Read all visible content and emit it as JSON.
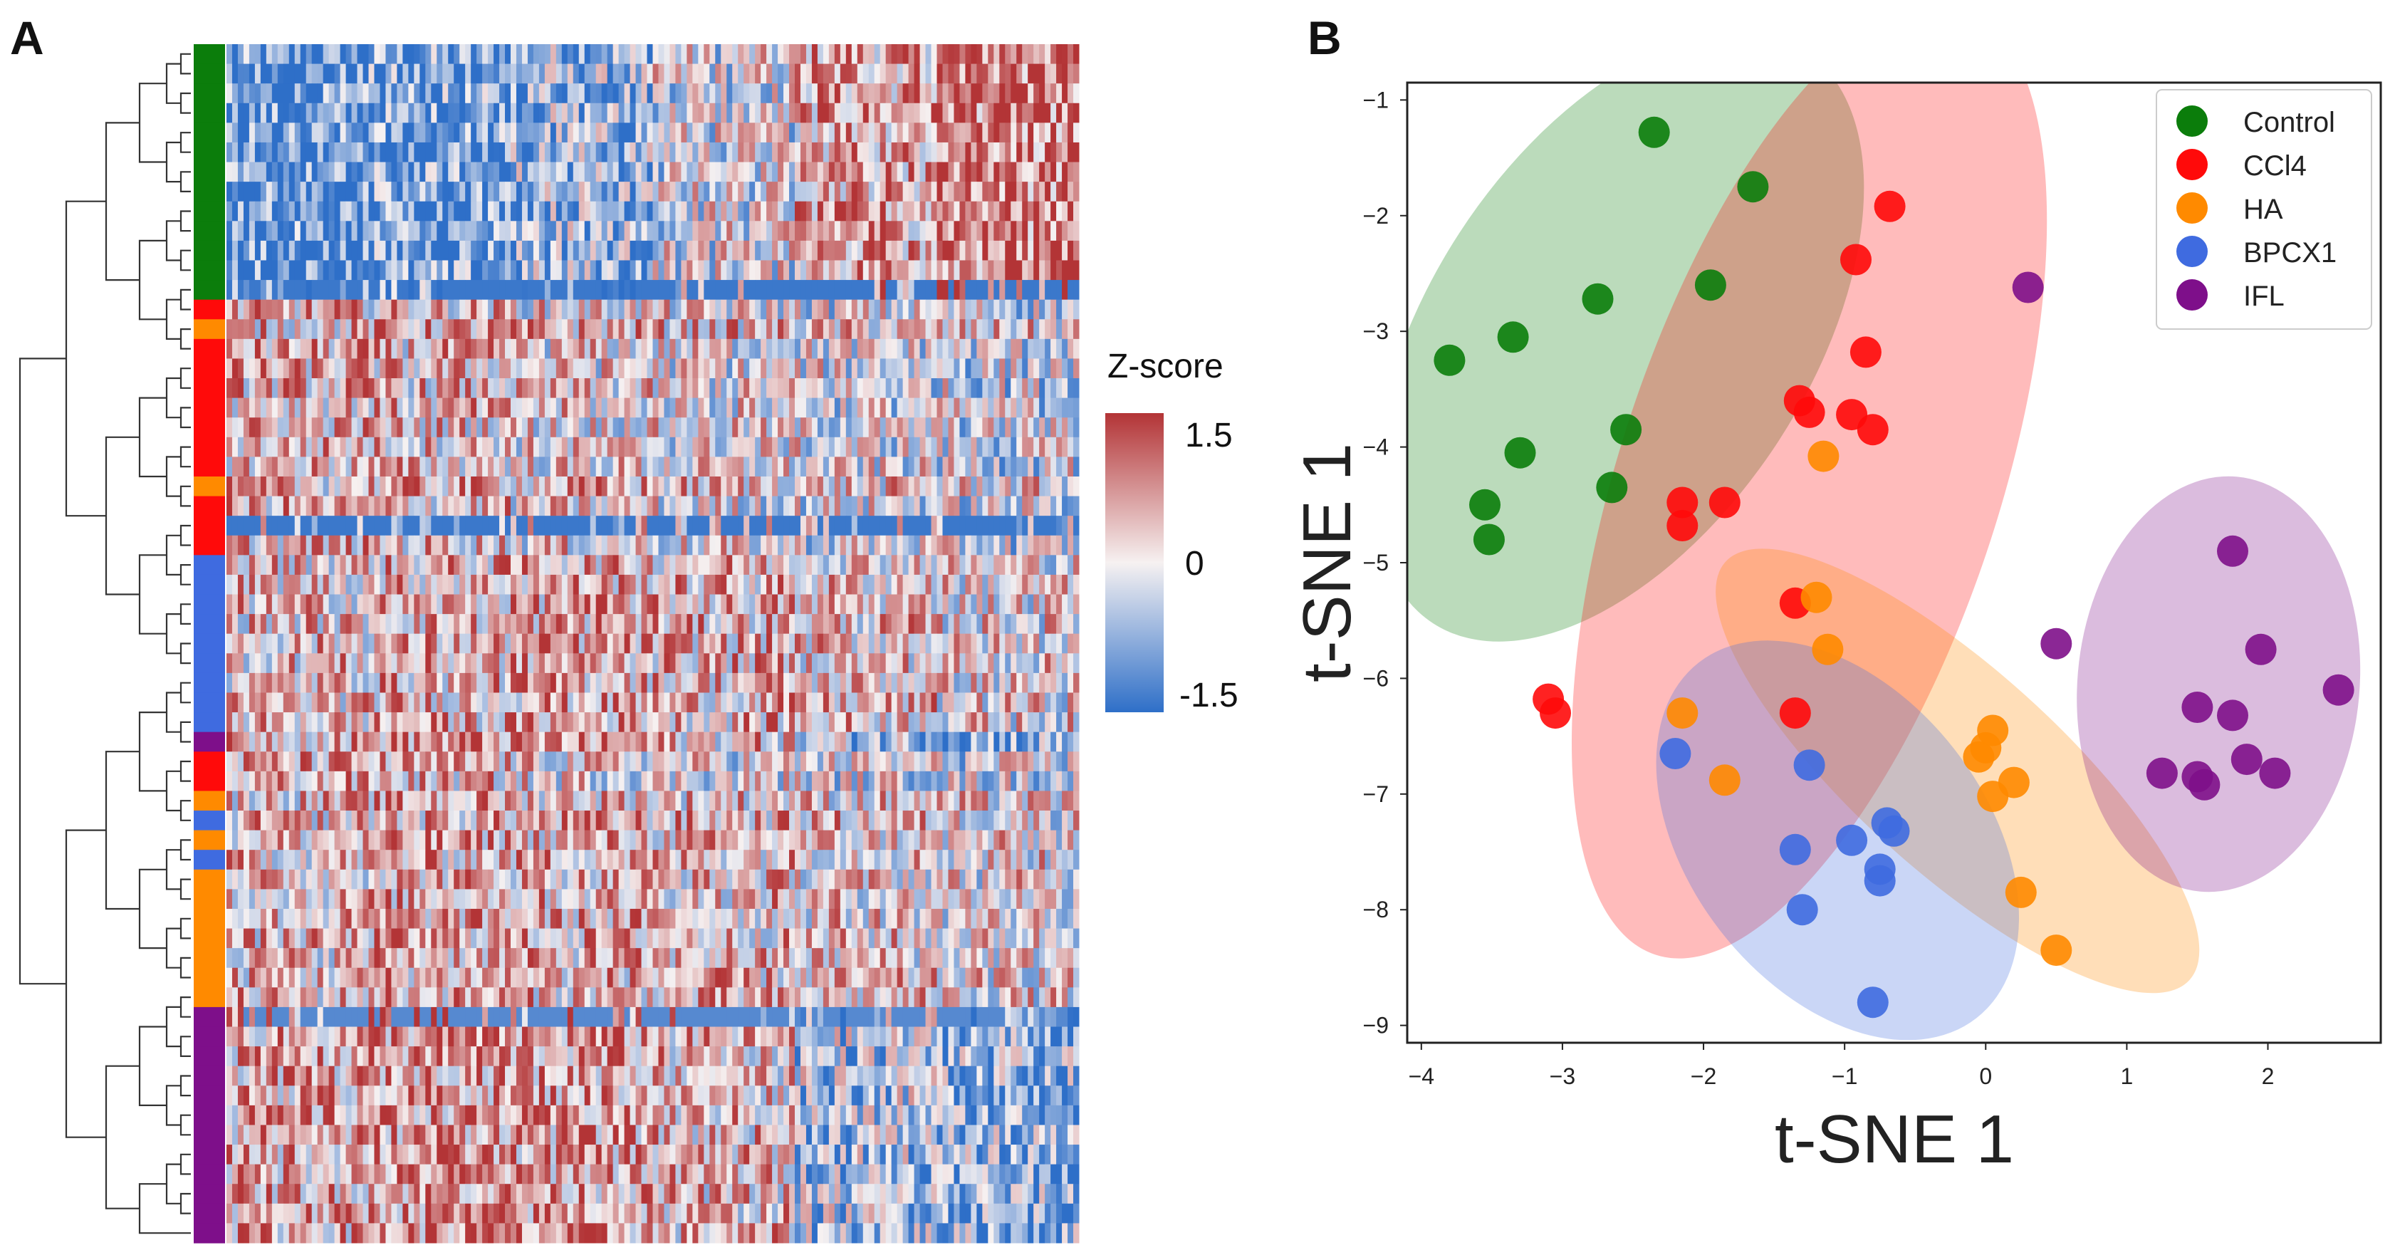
{
  "panels": {
    "a_label": "A",
    "b_label": "B"
  },
  "colors": {
    "Control": "#0b7d0b",
    "CCl4": "#ff0a0a",
    "HA": "#ff8a00",
    "BPCX1": "#3f6be0",
    "IFL": "#7e0f8a",
    "heatmap_low": "#2e6fc8",
    "heatmap_mid": "#f6f1f1",
    "heatmap_high": "#b33436"
  },
  "heatmap": {
    "colorbar_title": "Z-score",
    "colorbar_ticks": [
      "1.5",
      "0",
      "-1.5"
    ],
    "colorbar_range": [
      -1.5,
      1.5
    ],
    "row_annotation_groups": [
      "Control",
      "Control",
      "Control",
      "Control",
      "Control",
      "Control",
      "Control",
      "Control",
      "Control",
      "Control",
      "Control",
      "Control",
      "Control",
      "CCl4",
      "HA",
      "CCl4",
      "CCl4",
      "CCl4",
      "CCl4",
      "CCl4",
      "CCl4",
      "CCl4",
      "HA",
      "CCl4",
      "CCl4",
      "CCl4",
      "BPCX1",
      "BPCX1",
      "BPCX1",
      "BPCX1",
      "BPCX1",
      "BPCX1",
      "BPCX1",
      "BPCX1",
      "BPCX1",
      "IFL",
      "CCl4",
      "CCl4",
      "HA",
      "BPCX1",
      "HA",
      "BPCX1",
      "HA",
      "HA",
      "HA",
      "HA",
      "HA",
      "HA",
      "HA",
      "IFL",
      "IFL",
      "IFL",
      "IFL",
      "IFL",
      "IFL",
      "IFL",
      "IFL",
      "IFL",
      "IFL",
      "IFL",
      "IFL"
    ]
  },
  "chart_data": {
    "type": "scatter",
    "xlabel": "t-SNE 1",
    "ylabel": "t-SNE 1",
    "xlim": [
      -4.1,
      2.8
    ],
    "ylim": [
      -9.15,
      -0.85
    ],
    "xticks": [
      -4,
      -3,
      -2,
      -1,
      0,
      1,
      2
    ],
    "yticks": [
      -1,
      -2,
      -3,
      -4,
      -5,
      -6,
      -7,
      -8,
      -9
    ],
    "grid": false,
    "legend_position": "top-right",
    "series": [
      {
        "name": "Control",
        "color": "#0b7d0b",
        "points": [
          [
            -2.35,
            -1.28
          ],
          [
            -1.65,
            -1.75
          ],
          [
            -2.75,
            -2.72
          ],
          [
            -1.95,
            -2.6
          ],
          [
            -3.35,
            -3.05
          ],
          [
            -3.8,
            -3.25
          ],
          [
            -2.55,
            -3.85
          ],
          [
            -3.3,
            -4.05
          ],
          [
            -2.65,
            -4.35
          ],
          [
            -3.55,
            -4.5
          ],
          [
            -3.52,
            -4.8
          ]
        ]
      },
      {
        "name": "CCl4",
        "color": "#ff0a0a",
        "points": [
          [
            -0.68,
            -1.92
          ],
          [
            -0.92,
            -2.38
          ],
          [
            -0.85,
            -3.18
          ],
          [
            -1.32,
            -3.6
          ],
          [
            -1.25,
            -3.7
          ],
          [
            -0.95,
            -3.72
          ],
          [
            -0.8,
            -3.85
          ],
          [
            -2.15,
            -4.48
          ],
          [
            -1.85,
            -4.48
          ],
          [
            -2.15,
            -4.68
          ],
          [
            -1.35,
            -5.35
          ],
          [
            -3.1,
            -6.18
          ],
          [
            -3.05,
            -6.3
          ],
          [
            -1.35,
            -6.3
          ]
        ]
      },
      {
        "name": "HA",
        "color": "#ff8a00",
        "points": [
          [
            -1.15,
            -4.08
          ],
          [
            -1.2,
            -5.3
          ],
          [
            -1.12,
            -5.75
          ],
          [
            -2.15,
            -6.3
          ],
          [
            -1.85,
            -6.88
          ],
          [
            0.0,
            -6.6
          ],
          [
            -0.05,
            -6.68
          ],
          [
            0.05,
            -6.45
          ],
          [
            0.2,
            -6.9
          ],
          [
            0.05,
            -7.02
          ],
          [
            0.25,
            -7.85
          ],
          [
            0.5,
            -8.35
          ]
        ]
      },
      {
        "name": "BPCX1",
        "color": "#3f6be0",
        "points": [
          [
            -1.25,
            -6.75
          ],
          [
            -2.2,
            -6.65
          ],
          [
            -0.7,
            -7.25
          ],
          [
            -0.65,
            -7.32
          ],
          [
            -0.95,
            -7.4
          ],
          [
            -1.35,
            -7.48
          ],
          [
            -0.75,
            -7.65
          ],
          [
            -0.75,
            -7.75
          ],
          [
            -1.3,
            -8.0
          ],
          [
            -0.8,
            -8.8
          ]
        ]
      },
      {
        "name": "IFL",
        "color": "#7e0f8a",
        "points": [
          [
            0.3,
            -2.62
          ],
          [
            1.75,
            -4.9
          ],
          [
            0.5,
            -5.7
          ],
          [
            1.95,
            -5.75
          ],
          [
            2.5,
            -6.1
          ],
          [
            1.5,
            -6.25
          ],
          [
            1.75,
            -6.32
          ],
          [
            1.85,
            -6.7
          ],
          [
            1.25,
            -6.82
          ],
          [
            1.5,
            -6.85
          ],
          [
            2.05,
            -6.82
          ],
          [
            1.55,
            -6.92
          ]
        ]
      }
    ],
    "ellipses": [
      {
        "group": "Control",
        "center": [
          -2.6,
          -3.05
        ],
        "semi_axes": [
          1.35,
          2.95
        ],
        "angle_deg": 33
      },
      {
        "group": "CCl4",
        "center": [
          -1.25,
          -4.3
        ],
        "semi_axes": [
          1.35,
          4.3
        ],
        "angle_deg": 18
      },
      {
        "group": "HA",
        "center": [
          -0.2,
          -6.8
        ],
        "semi_axes": [
          0.72,
          2.7
        ],
        "angle_deg": -48
      },
      {
        "group": "BPCX1",
        "center": [
          -1.05,
          -7.4
        ],
        "semi_axes": [
          1.05,
          1.95
        ],
        "angle_deg": -38
      },
      {
        "group": "IFL",
        "center": [
          1.65,
          -6.05
        ],
        "semi_axes": [
          1.0,
          1.8
        ],
        "angle_deg": 5
      }
    ]
  }
}
